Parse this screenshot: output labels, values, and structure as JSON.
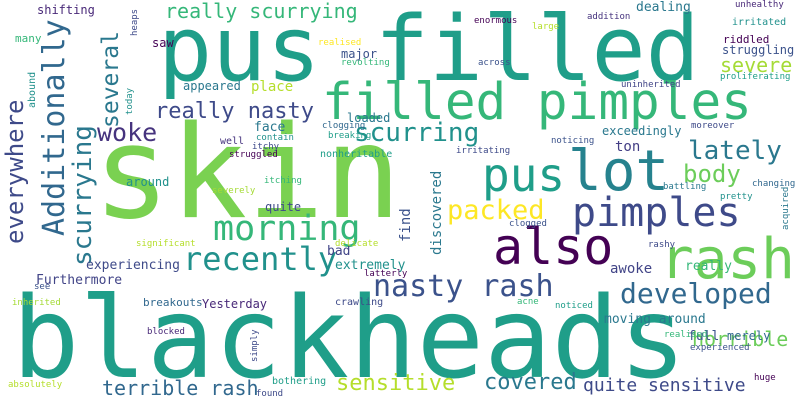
{
  "words": [
    {
      "text": "skin",
      "color": "#7ad151"
    },
    {
      "text": "blackheads",
      "color": "#1f9e89"
    },
    {
      "text": "pus filled",
      "color": "#1f9e89"
    },
    {
      "text": "filled pimples",
      "color": "#35b779"
    },
    {
      "text": "lot",
      "color": "#26828e"
    },
    {
      "text": "rash",
      "color": "#6ccd5a"
    },
    {
      "text": "also",
      "color": "#440154"
    },
    {
      "text": "pimples",
      "color": "#3e4a89"
    },
    {
      "text": "Additionally",
      "color": "#31688e"
    },
    {
      "text": "pus",
      "color": "#1f9e89"
    },
    {
      "text": "scurrying",
      "color": "#2a788e"
    },
    {
      "text": "morning",
      "color": "#35b779"
    },
    {
      "text": "recently",
      "color": "#21918c"
    },
    {
      "text": "nasty rash",
      "color": "#3b528b"
    },
    {
      "text": "developed",
      "color": "#31688e"
    },
    {
      "text": "everywhere",
      "color": "#3e4a89"
    },
    {
      "text": "several",
      "color": "#2a788e"
    },
    {
      "text": "scurring",
      "color": "#21918c"
    },
    {
      "text": "lately",
      "color": "#2a788e"
    },
    {
      "text": "packed",
      "color": "#fde725"
    },
    {
      "text": "body",
      "color": "#6ccd5a"
    },
    {
      "text": "woke",
      "color": "#46337e"
    },
    {
      "text": "really scurrying",
      "color": "#35b779"
    },
    {
      "text": "really nasty",
      "color": "#3e4a89"
    },
    {
      "text": "severe",
      "color": "#a5db36"
    },
    {
      "text": "sensitive",
      "color": "#b5de2b"
    },
    {
      "text": "covered",
      "color": "#2a788e"
    },
    {
      "text": "quite sensitive",
      "color": "#3e4a89"
    },
    {
      "text": "terrible rash",
      "color": "#31688e"
    },
    {
      "text": "horrible",
      "color": "#6ccd5a"
    },
    {
      "text": "Furthermore",
      "color": "#414487"
    },
    {
      "text": "experiencing",
      "color": "#3e4a89"
    },
    {
      "text": "extremely",
      "color": "#21918c"
    },
    {
      "text": "awoke",
      "color": "#414487"
    },
    {
      "text": "really",
      "color": "#35b779"
    },
    {
      "text": "discovered",
      "color": "#2a788e"
    },
    {
      "text": "find",
      "color": "#3b528b"
    },
    {
      "text": "ton",
      "color": "#433e85"
    },
    {
      "text": "exceedingly",
      "color": "#2a788e"
    },
    {
      "text": "face",
      "color": "#2a788e"
    },
    {
      "text": "place",
      "color": "#b5de2b"
    },
    {
      "text": "appeared",
      "color": "#2a788e"
    },
    {
      "text": "saw",
      "color": "#440154"
    },
    {
      "text": "loaded",
      "color": "#2a788e"
    },
    {
      "text": "major",
      "color": "#3b528b"
    },
    {
      "text": "bad",
      "color": "#414487"
    },
    {
      "text": "quite",
      "color": "#3e4a89"
    },
    {
      "text": "around",
      "color": "#21918c"
    },
    {
      "text": "moving around",
      "color": "#2a788e"
    },
    {
      "text": "full",
      "color": "#3b528b"
    },
    {
      "text": "merely",
      "color": "#31688e"
    },
    {
      "text": "Yesterday",
      "color": "#482878"
    },
    {
      "text": "breakouts",
      "color": "#31688e"
    },
    {
      "text": "crawling",
      "color": "#3e4a89"
    },
    {
      "text": "dealing",
      "color": "#2a788e"
    },
    {
      "text": "struggling",
      "color": "#3b528b"
    },
    {
      "text": "riddled",
      "color": "#440154"
    },
    {
      "text": "shifting",
      "color": "#482878"
    },
    {
      "text": "many",
      "color": "#35b779"
    },
    {
      "text": "abound",
      "color": "#21918c"
    },
    {
      "text": "heaps",
      "color": "#3e4a89"
    },
    {
      "text": "today",
      "color": "#21918c"
    },
    {
      "text": "enormous",
      "color": "#440154"
    },
    {
      "text": "large",
      "color": "#b5de2b"
    },
    {
      "text": "addition",
      "color": "#46337e"
    },
    {
      "text": "unhealthy",
      "color": "#482878"
    },
    {
      "text": "irritated",
      "color": "#21918c"
    },
    {
      "text": "proliferating",
      "color": "#1f9e89"
    },
    {
      "text": "realised",
      "color": "#fde725"
    },
    {
      "text": "revolting",
      "color": "#35b779"
    },
    {
      "text": "across",
      "color": "#3b528b"
    },
    {
      "text": "uninherited",
      "color": "#414487"
    },
    {
      "text": "clogging",
      "color": "#31688e"
    },
    {
      "text": "breaking",
      "color": "#1f9e89"
    },
    {
      "text": "contain",
      "color": "#21918c"
    },
    {
      "text": "itchy",
      "color": "#3e4a89"
    },
    {
      "text": "struggled",
      "color": "#440154"
    },
    {
      "text": "nonheritable",
      "color": "#1f9e89"
    },
    {
      "text": "noticing",
      "color": "#3b528b"
    },
    {
      "text": "irritating",
      "color": "#3e4a89"
    },
    {
      "text": "moreover",
      "color": "#3e4a89"
    },
    {
      "text": "itching",
      "color": "#35b779"
    },
    {
      "text": "severely",
      "color": "#a5db36"
    },
    {
      "text": "battling",
      "color": "#2a788e"
    },
    {
      "text": "changing",
      "color": "#31688e"
    },
    {
      "text": "pretty",
      "color": "#21918c"
    },
    {
      "text": "acquired",
      "color": "#2a788e"
    },
    {
      "text": "clogged",
      "color": "#3b528b"
    },
    {
      "text": "significant",
      "color": "#b5de2b"
    },
    {
      "text": "delicate",
      "color": "#b5de2b"
    },
    {
      "text": "rashy",
      "color": "#3e4a89"
    },
    {
      "text": "latterly",
      "color": "#440154"
    },
    {
      "text": "inherited",
      "color": "#a5db36"
    },
    {
      "text": "see",
      "color": "#3b528b"
    },
    {
      "text": "blocked",
      "color": "#482878"
    },
    {
      "text": "simply",
      "color": "#3e4a89"
    },
    {
      "text": "acne",
      "color": "#35b779"
    },
    {
      "text": "noticed",
      "color": "#1f9e89"
    },
    {
      "text": "realised",
      "color": "#35b779"
    },
    {
      "text": "experienced",
      "color": "#3b528b"
    },
    {
      "text": "huge",
      "color": "#440154"
    },
    {
      "text": "bothering",
      "color": "#1f9e89"
    },
    {
      "text": "found",
      "color": "#3e4a89"
    },
    {
      "text": "absolutely",
      "color": "#b5de2b"
    },
    {
      "text": "well",
      "color": "#46337e"
    }
  ]
}
